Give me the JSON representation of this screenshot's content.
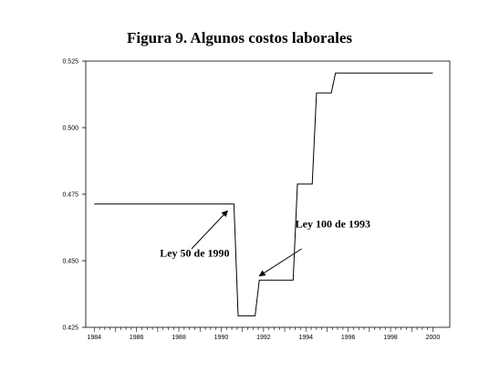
{
  "chart_data": {
    "type": "line",
    "title": "Figura 9. Algunos costos laborales",
    "xlabel": "",
    "ylabel": "",
    "xlim": [
      1983.6,
      2000.8
    ],
    "ylim": [
      0.425,
      0.525
    ],
    "yticks": [
      0.425,
      0.45,
      0.475,
      0.5,
      0.525
    ],
    "ytick_labels": [
      "0.425",
      "0.450",
      "0.475",
      "0.500",
      "0.525"
    ],
    "xticks": [
      1984,
      1986,
      1988,
      1990,
      1992,
      1994,
      1996,
      1998,
      2000
    ],
    "xtick_labels": [
      "1984",
      "1986",
      "1988",
      "1990",
      "1992",
      "1994",
      "1996",
      "1998",
      "2000"
    ],
    "grid": false,
    "series": [
      {
        "x": [
          1984.0,
          1990.6,
          1990.8,
          1991.6,
          1991.8,
          1993.4,
          1993.6,
          1994.3,
          1994.5,
          1995.2,
          1995.4,
          2000.0
        ],
        "y": [
          0.4713,
          0.4713,
          0.4293,
          0.4293,
          0.4427,
          0.4427,
          0.4788,
          0.4788,
          0.513,
          0.513,
          0.5205,
          0.5205
        ]
      }
    ],
    "annotations": [
      {
        "text": "Ley 50 de 1990",
        "text_x": 1987.1,
        "text_y": 0.4515,
        "arrow_from": [
          1988.6,
          0.4545
        ],
        "arrow_to": [
          1990.3,
          0.4688
        ]
      },
      {
        "text": "Ley 100 de 1993",
        "text_x": 1993.5,
        "text_y": 0.4625,
        "arrow_from": [
          1993.8,
          0.4545
        ],
        "arrow_to": [
          1991.8,
          0.4443
        ]
      }
    ]
  }
}
